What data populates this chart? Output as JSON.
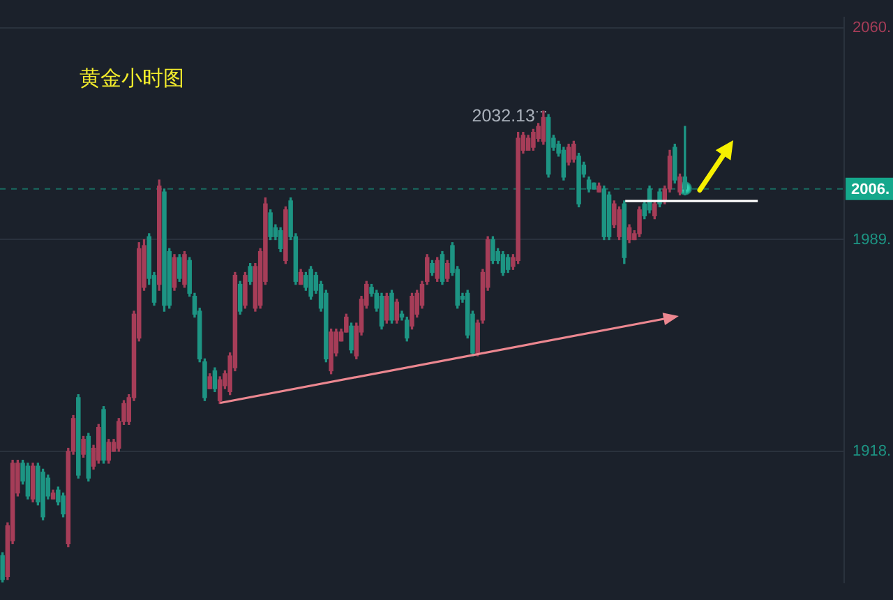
{
  "chart_data": {
    "type": "candlestick",
    "title": "黄金小时图",
    "categories": [
      null,
      null,
      null,
      null,
      null,
      null,
      null,
      null,
      null,
      null,
      null,
      null,
      null,
      null,
      null,
      null,
      null,
      null,
      null,
      null,
      null,
      null,
      null,
      null,
      null,
      null,
      null,
      null,
      null,
      null,
      null,
      null,
      null,
      null,
      null,
      null,
      null,
      null,
      null,
      null,
      null,
      null,
      null,
      null,
      null,
      null,
      null,
      null,
      null,
      null,
      null,
      null,
      null,
      null,
      null,
      null,
      null,
      null,
      null,
      null,
      null,
      null,
      null,
      null,
      null,
      null,
      null,
      null,
      null,
      null,
      null,
      null,
      null,
      null,
      null,
      null,
      null,
      null,
      null,
      null,
      null,
      null,
      null,
      null,
      null,
      null,
      null,
      null,
      null,
      null,
      null,
      null,
      null,
      null,
      null,
      null,
      null,
      null,
      null,
      null,
      null,
      null,
      null,
      null,
      null,
      null,
      null,
      null,
      null,
      null,
      null,
      null,
      null,
      null,
      null,
      null,
      null,
      null,
      null,
      null,
      null,
      null,
      null,
      null,
      null,
      null,
      null,
      null,
      null,
      null,
      null,
      null,
      null,
      null,
      null,
      null,
      null,
      null,
      null,
      null,
      null,
      null,
      null,
      null,
      null,
      null,
      null,
      null,
      null,
      null,
      null,
      null,
      null,
      null,
      null,
      null,
      null,
      null,
      null,
      null,
      null,
      null,
      null,
      null,
      null,
      null,
      null
    ],
    "ohlc": [
      [
        1883,
        1884,
        1874,
        1875
      ],
      [
        1876,
        1894,
        1875,
        1893
      ],
      [
        1888,
        1915,
        1887,
        1914
      ],
      [
        1904,
        1915,
        1903,
        1914
      ],
      [
        1914,
        1915,
        1907,
        1908
      ],
      [
        1913,
        1914,
        1902,
        1903
      ],
      [
        1902,
        1914,
        1901,
        1913
      ],
      [
        1913,
        1914,
        1900,
        1901
      ],
      [
        1911,
        1912,
        1895,
        1896
      ],
      [
        1909,
        1910,
        1902,
        1903
      ],
      [
        1902,
        1905,
        1902,
        1904
      ],
      [
        1905,
        1906,
        1900,
        1901
      ],
      [
        1903,
        1904,
        1896,
        1897
      ],
      [
        1887,
        1919,
        1886,
        1918
      ],
      [
        1918,
        1930,
        1917,
        1929
      ],
      [
        1936,
        1937,
        1909,
        1910
      ],
      [
        1917,
        1923,
        1916,
        1922
      ],
      [
        1923,
        1924,
        1908,
        1909
      ],
      [
        1913,
        1920,
        1912,
        1919
      ],
      [
        1915,
        1927,
        1914,
        1926
      ],
      [
        1932,
        1933,
        1914,
        1915
      ],
      [
        1915,
        1922,
        1914,
        1921
      ],
      [
        1918,
        1922,
        1918,
        1921
      ],
      [
        1919,
        1929,
        1918,
        1928
      ],
      [
        1928,
        1935,
        1927,
        1934
      ],
      [
        1928,
        1937,
        1927,
        1936
      ],
      [
        1936,
        1965,
        1935,
        1964
      ],
      [
        1956,
        1988,
        1955,
        1986
      ],
      [
        1973,
        1989,
        1972,
        1987
      ],
      [
        1990,
        1991,
        1974,
        1976
      ],
      [
        1977,
        1978,
        1967,
        1968
      ],
      [
        1974,
        2009,
        1972,
        2007
      ],
      [
        2005,
        2006,
        1965,
        1967
      ],
      [
        1985,
        1986,
        1966,
        1967
      ],
      [
        1973,
        1984,
        1972,
        1983
      ],
      [
        1983,
        1984,
        1975,
        1976
      ],
      [
        1974,
        1985,
        1973,
        1984
      ],
      [
        1982,
        1983,
        1970,
        1971
      ],
      [
        1970,
        1971,
        1963,
        1964
      ],
      [
        1965,
        1966,
        1948,
        1949
      ],
      [
        1948,
        1949,
        1935,
        1936
      ],
      [
        1939,
        1944,
        1939,
        1943
      ],
      [
        1945,
        1946,
        1938,
        1939
      ],
      [
        1935,
        1943,
        1934,
        1942
      ],
      [
        1940,
        1945,
        1939,
        1944
      ],
      [
        1938,
        1951,
        1937,
        1950
      ],
      [
        1946,
        1978,
        1945,
        1977
      ],
      [
        1974,
        1975,
        1964,
        1965
      ],
      [
        1967,
        1978,
        1966,
        1977
      ],
      [
        1980,
        1981,
        1974,
        1975
      ],
      [
        1966,
        1981,
        1965,
        1980
      ],
      [
        1967,
        1986,
        1966,
        1985
      ],
      [
        1975,
        2003,
        1974,
        2001
      ],
      [
        1998,
        1999,
        1989,
        1990
      ],
      [
        1993,
        1994,
        1989,
        1990
      ],
      [
        1992,
        1993,
        1985,
        1986
      ],
      [
        1982,
        2000,
        1981,
        1999
      ],
      [
        2002,
        2003,
        1989,
        1990
      ],
      [
        1990,
        1991,
        1974,
        1975
      ],
      [
        1974,
        1979,
        1974,
        1978
      ],
      [
        1977,
        1978,
        1972,
        1973
      ],
      [
        1979,
        1980,
        1969,
        1970
      ],
      [
        1977,
        1978,
        1971,
        1972
      ],
      [
        1974,
        1975,
        1965,
        1966
      ],
      [
        1971,
        1972,
        1948,
        1949
      ],
      [
        1945,
        1959,
        1944,
        1958
      ],
      [
        1951,
        1959,
        1950,
        1958
      ],
      [
        1955,
        1959,
        1955,
        1958
      ],
      [
        1958,
        1964,
        1958,
        1963
      ],
      [
        1960,
        1961,
        1951,
        1952
      ],
      [
        1950,
        1961,
        1949,
        1960
      ],
      [
        1958,
        1970,
        1957,
        1969
      ],
      [
        1967,
        1975,
        1966,
        1974
      ],
      [
        1973,
        1974,
        1970,
        1971
      ],
      [
        1971,
        1972,
        1965,
        1966
      ],
      [
        1970,
        1971,
        1959,
        1960
      ],
      [
        1962,
        1971,
        1961,
        1970
      ],
      [
        1971,
        1972,
        1961,
        1962
      ],
      [
        1962,
        1969,
        1961,
        1968
      ],
      [
        1964,
        1965,
        1962,
        1963
      ],
      [
        1962,
        1963,
        1955,
        1956
      ],
      [
        1960,
        1971,
        1959,
        1970
      ],
      [
        1964,
        1972,
        1963,
        1971
      ],
      [
        1967,
        1975,
        1966,
        1974
      ],
      [
        1975,
        1984,
        1974,
        1983
      ],
      [
        1981,
        1982,
        1977,
        1978
      ],
      [
        1976,
        1983,
        1975,
        1982
      ],
      [
        1984,
        1985,
        1974,
        1975
      ],
      [
        1976,
        1982,
        1975,
        1981
      ],
      [
        1987,
        1988,
        1977,
        1978
      ],
      [
        1979,
        1980,
        1966,
        1967
      ],
      [
        1970,
        1971,
        1968,
        1969
      ],
      [
        1971,
        1972,
        1956,
        1957
      ],
      [
        1964,
        1965,
        1950,
        1951
      ],
      [
        1951,
        1962,
        1950,
        1961
      ],
      [
        1962,
        1979,
        1961,
        1978
      ],
      [
        1973,
        1990,
        1972,
        1989
      ],
      [
        1989,
        1990,
        1981,
        1982
      ],
      [
        1985,
        1986,
        1981,
        1982
      ],
      [
        1984,
        1985,
        1977,
        1978
      ],
      [
        1983,
        1984,
        1978,
        1979
      ],
      [
        1980,
        1984,
        1979,
        1983
      ],
      [
        1982,
        2025,
        1981,
        2023
      ],
      [
        2019,
        2025,
        2018,
        2024
      ],
      [
        2019,
        2024,
        2019,
        2023
      ],
      [
        2020,
        2026,
        2019,
        2025
      ],
      [
        2023,
        2028,
        2022,
        2027
      ],
      [
        2022,
        2032.13,
        2021,
        2030
      ],
      [
        2030,
        2031,
        2010,
        2011
      ],
      [
        2023,
        2024,
        2019,
        2020
      ],
      [
        2021,
        2022,
        2017,
        2018
      ],
      [
        2019,
        2020,
        2009,
        2010
      ],
      [
        2015,
        2021,
        2014,
        2020
      ],
      [
        2016,
        2022,
        2015,
        2021
      ],
      [
        2017,
        2018,
        2000,
        2001
      ],
      [
        2014,
        2015,
        2010,
        2011
      ],
      [
        2009,
        2010,
        2005,
        2006
      ],
      [
        2008,
        2008,
        2006,
        2006
      ],
      [
        2005,
        2008,
        2005,
        2007
      ],
      [
        2006,
        2007,
        1989,
        1990
      ],
      [
        2004,
        2005,
        1989,
        1990
      ],
      [
        1994,
        2002,
        1993,
        2001
      ],
      [
        1990,
        2000,
        1989,
        1999
      ],
      [
        2001,
        2002,
        1981,
        1983
      ],
      [
        1989,
        1994,
        1988,
        1993
      ],
      [
        1989,
        1992,
        1989,
        1991
      ],
      [
        1991,
        2000,
        1990,
        1999
      ],
      [
        2001,
        2002,
        1996,
        1997
      ],
      [
        2006,
        2007,
        1998,
        1999
      ],
      [
        1997,
        2002,
        1996,
        2001
      ],
      [
        2005,
        2006,
        2000,
        2001
      ],
      [
        2002,
        2007,
        2001,
        2006
      ],
      [
        2006,
        2019,
        2005,
        2017
      ],
      [
        2020,
        2021,
        2008,
        2009
      ],
      [
        2005,
        2011,
        2004,
        2010
      ],
      [
        2010,
        2027,
        2004,
        2006
      ],
      null,
      null,
      null,
      null,
      null,
      null,
      null,
      null,
      null,
      null,
      null,
      null,
      null,
      null,
      null,
      null,
      null,
      null,
      null,
      null,
      null,
      null,
      null,
      null,
      null,
      null,
      null,
      null,
      null,
      null,
      null
    ],
    "colors": [
      "#1d9483",
      "#a63d58",
      "#a63d58",
      "#a63d58",
      "#1d9483",
      "#1d9483",
      "#a63d58",
      "#1d9483",
      "#1d9483",
      "#1d9483",
      "#a63d58",
      "#1d9483",
      "#1d9483",
      "#a63d58",
      "#a63d58",
      "#1d9483",
      "#a63d58",
      "#1d9483",
      "#a63d58",
      "#a63d58",
      "#1d9483",
      "#a63d58",
      "#a63d58",
      "#a63d58",
      "#a63d58",
      "#a63d58",
      "#a63d58",
      "#a63d58",
      "#a63d58",
      "#1d9483",
      "#1d9483",
      "#a63d58",
      "#1d9483",
      "#1d9483",
      "#a63d58",
      "#1d9483",
      "#a63d58",
      "#1d9483",
      "#1d9483",
      "#1d9483",
      "#1d9483",
      "#a63d58",
      "#1d9483",
      "#a63d58",
      "#a63d58",
      "#a63d58",
      "#a63d58",
      "#1d9483",
      "#a63d58",
      "#1d9483",
      "#a63d58",
      "#a63d58",
      "#a63d58",
      "#1d9483",
      "#1d9483",
      "#1d9483",
      "#a63d58",
      "#1d9483",
      "#1d9483",
      "#a63d58",
      "#1d9483",
      "#1d9483",
      "#1d9483",
      "#1d9483",
      "#1d9483",
      "#a63d58",
      "#a63d58",
      "#a63d58",
      "#a63d58",
      "#1d9483",
      "#a63d58",
      "#a63d58",
      "#a63d58",
      "#1d9483",
      "#1d9483",
      "#1d9483",
      "#a63d58",
      "#1d9483",
      "#a63d58",
      "#1d9483",
      "#1d9483",
      "#a63d58",
      "#a63d58",
      "#a63d58",
      "#a63d58",
      "#1d9483",
      "#a63d58",
      "#1d9483",
      "#a63d58",
      "#1d9483",
      "#1d9483",
      "#1d9483",
      "#1d9483",
      "#1d9483",
      "#a63d58",
      "#a63d58",
      "#a63d58",
      "#1d9483",
      "#1d9483",
      "#1d9483",
      "#1d9483",
      "#a63d58",
      "#a63d58",
      "#a63d58",
      "#a63d58",
      "#a63d58",
      "#a63d58",
      "#a63d58",
      "#1d9483",
      "#1d9483",
      "#1d9483",
      "#1d9483",
      "#a63d58",
      "#a63d58",
      "#1d9483",
      "#1d9483",
      "#1d9483",
      "#1d9483",
      "#a63d58",
      "#1d9483",
      "#1d9483",
      "#a63d58",
      "#a63d58",
      "#1d9483",
      "#a63d58",
      "#a63d58",
      "#a63d58",
      "#1d9483",
      "#1d9483",
      "#a63d58",
      "#1d9483",
      "#a63d58",
      "#a63d58",
      "#1d9483",
      "#a63d58",
      "#1d9483",
      null,
      null,
      null,
      null,
      null,
      null,
      null,
      null,
      null,
      null,
      null,
      null,
      null,
      null,
      null,
      null,
      null,
      null,
      null,
      null,
      null,
      null,
      null,
      null,
      null,
      null,
      null,
      null,
      null,
      null,
      null
    ],
    "ylim": [
      1874,
      2063.5
    ],
    "yticks": [
      {
        "value": 1918,
        "label": "1918."
      },
      {
        "value": 1989,
        "label": "1989."
      },
      {
        "value": 2060,
        "label": "2060."
      }
    ],
    "ref_lines": [
      {
        "axis": "y",
        "value": 2006,
        "label": "2006.",
        "color": "#15a88c",
        "line_style": "dashed"
      }
    ],
    "annotations": [
      "2032.13"
    ],
    "grid": "y",
    "tick_labels": "y"
  }
}
